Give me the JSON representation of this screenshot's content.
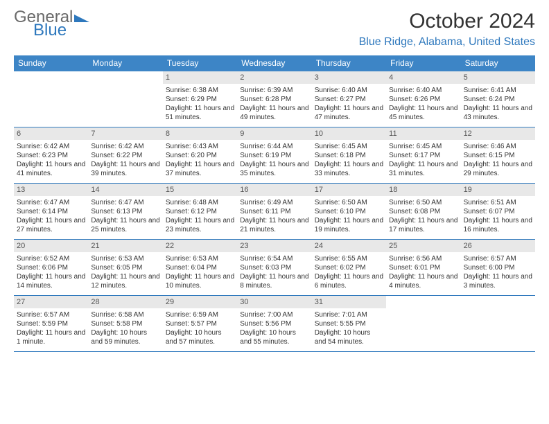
{
  "brand": {
    "text1": "General",
    "text2": "Blue"
  },
  "title": "October 2024",
  "location": "Blue Ridge, Alabama, United States",
  "colors": {
    "header_bg": "#3d85c6",
    "header_fg": "#ffffff",
    "accent": "#2e78bd",
    "daynum_bg": "#e8e8e8",
    "text": "#333333"
  },
  "layout": {
    "columns": 7,
    "rows": 5,
    "first_day_column_index": 2
  },
  "day_labels": [
    "Sunday",
    "Monday",
    "Tuesday",
    "Wednesday",
    "Thursday",
    "Friday",
    "Saturday"
  ],
  "days": [
    {
      "n": 1,
      "sr": "6:38 AM",
      "ss": "6:29 PM",
      "dl": "11 hours and 51 minutes."
    },
    {
      "n": 2,
      "sr": "6:39 AM",
      "ss": "6:28 PM",
      "dl": "11 hours and 49 minutes."
    },
    {
      "n": 3,
      "sr": "6:40 AM",
      "ss": "6:27 PM",
      "dl": "11 hours and 47 minutes."
    },
    {
      "n": 4,
      "sr": "6:40 AM",
      "ss": "6:26 PM",
      "dl": "11 hours and 45 minutes."
    },
    {
      "n": 5,
      "sr": "6:41 AM",
      "ss": "6:24 PM",
      "dl": "11 hours and 43 minutes."
    },
    {
      "n": 6,
      "sr": "6:42 AM",
      "ss": "6:23 PM",
      "dl": "11 hours and 41 minutes."
    },
    {
      "n": 7,
      "sr": "6:42 AM",
      "ss": "6:22 PM",
      "dl": "11 hours and 39 minutes."
    },
    {
      "n": 8,
      "sr": "6:43 AM",
      "ss": "6:20 PM",
      "dl": "11 hours and 37 minutes."
    },
    {
      "n": 9,
      "sr": "6:44 AM",
      "ss": "6:19 PM",
      "dl": "11 hours and 35 minutes."
    },
    {
      "n": 10,
      "sr": "6:45 AM",
      "ss": "6:18 PM",
      "dl": "11 hours and 33 minutes."
    },
    {
      "n": 11,
      "sr": "6:45 AM",
      "ss": "6:17 PM",
      "dl": "11 hours and 31 minutes."
    },
    {
      "n": 12,
      "sr": "6:46 AM",
      "ss": "6:15 PM",
      "dl": "11 hours and 29 minutes."
    },
    {
      "n": 13,
      "sr": "6:47 AM",
      "ss": "6:14 PM",
      "dl": "11 hours and 27 minutes."
    },
    {
      "n": 14,
      "sr": "6:47 AM",
      "ss": "6:13 PM",
      "dl": "11 hours and 25 minutes."
    },
    {
      "n": 15,
      "sr": "6:48 AM",
      "ss": "6:12 PM",
      "dl": "11 hours and 23 minutes."
    },
    {
      "n": 16,
      "sr": "6:49 AM",
      "ss": "6:11 PM",
      "dl": "11 hours and 21 minutes."
    },
    {
      "n": 17,
      "sr": "6:50 AM",
      "ss": "6:10 PM",
      "dl": "11 hours and 19 minutes."
    },
    {
      "n": 18,
      "sr": "6:50 AM",
      "ss": "6:08 PM",
      "dl": "11 hours and 17 minutes."
    },
    {
      "n": 19,
      "sr": "6:51 AM",
      "ss": "6:07 PM",
      "dl": "11 hours and 16 minutes."
    },
    {
      "n": 20,
      "sr": "6:52 AM",
      "ss": "6:06 PM",
      "dl": "11 hours and 14 minutes."
    },
    {
      "n": 21,
      "sr": "6:53 AM",
      "ss": "6:05 PM",
      "dl": "11 hours and 12 minutes."
    },
    {
      "n": 22,
      "sr": "6:53 AM",
      "ss": "6:04 PM",
      "dl": "11 hours and 10 minutes."
    },
    {
      "n": 23,
      "sr": "6:54 AM",
      "ss": "6:03 PM",
      "dl": "11 hours and 8 minutes."
    },
    {
      "n": 24,
      "sr": "6:55 AM",
      "ss": "6:02 PM",
      "dl": "11 hours and 6 minutes."
    },
    {
      "n": 25,
      "sr": "6:56 AM",
      "ss": "6:01 PM",
      "dl": "11 hours and 4 minutes."
    },
    {
      "n": 26,
      "sr": "6:57 AM",
      "ss": "6:00 PM",
      "dl": "11 hours and 3 minutes."
    },
    {
      "n": 27,
      "sr": "6:57 AM",
      "ss": "5:59 PM",
      "dl": "11 hours and 1 minute."
    },
    {
      "n": 28,
      "sr": "6:58 AM",
      "ss": "5:58 PM",
      "dl": "10 hours and 59 minutes."
    },
    {
      "n": 29,
      "sr": "6:59 AM",
      "ss": "5:57 PM",
      "dl": "10 hours and 57 minutes."
    },
    {
      "n": 30,
      "sr": "7:00 AM",
      "ss": "5:56 PM",
      "dl": "10 hours and 55 minutes."
    },
    {
      "n": 31,
      "sr": "7:01 AM",
      "ss": "5:55 PM",
      "dl": "10 hours and 54 minutes."
    }
  ],
  "labels": {
    "sunrise": "Sunrise:",
    "sunset": "Sunset:",
    "daylight": "Daylight:"
  }
}
